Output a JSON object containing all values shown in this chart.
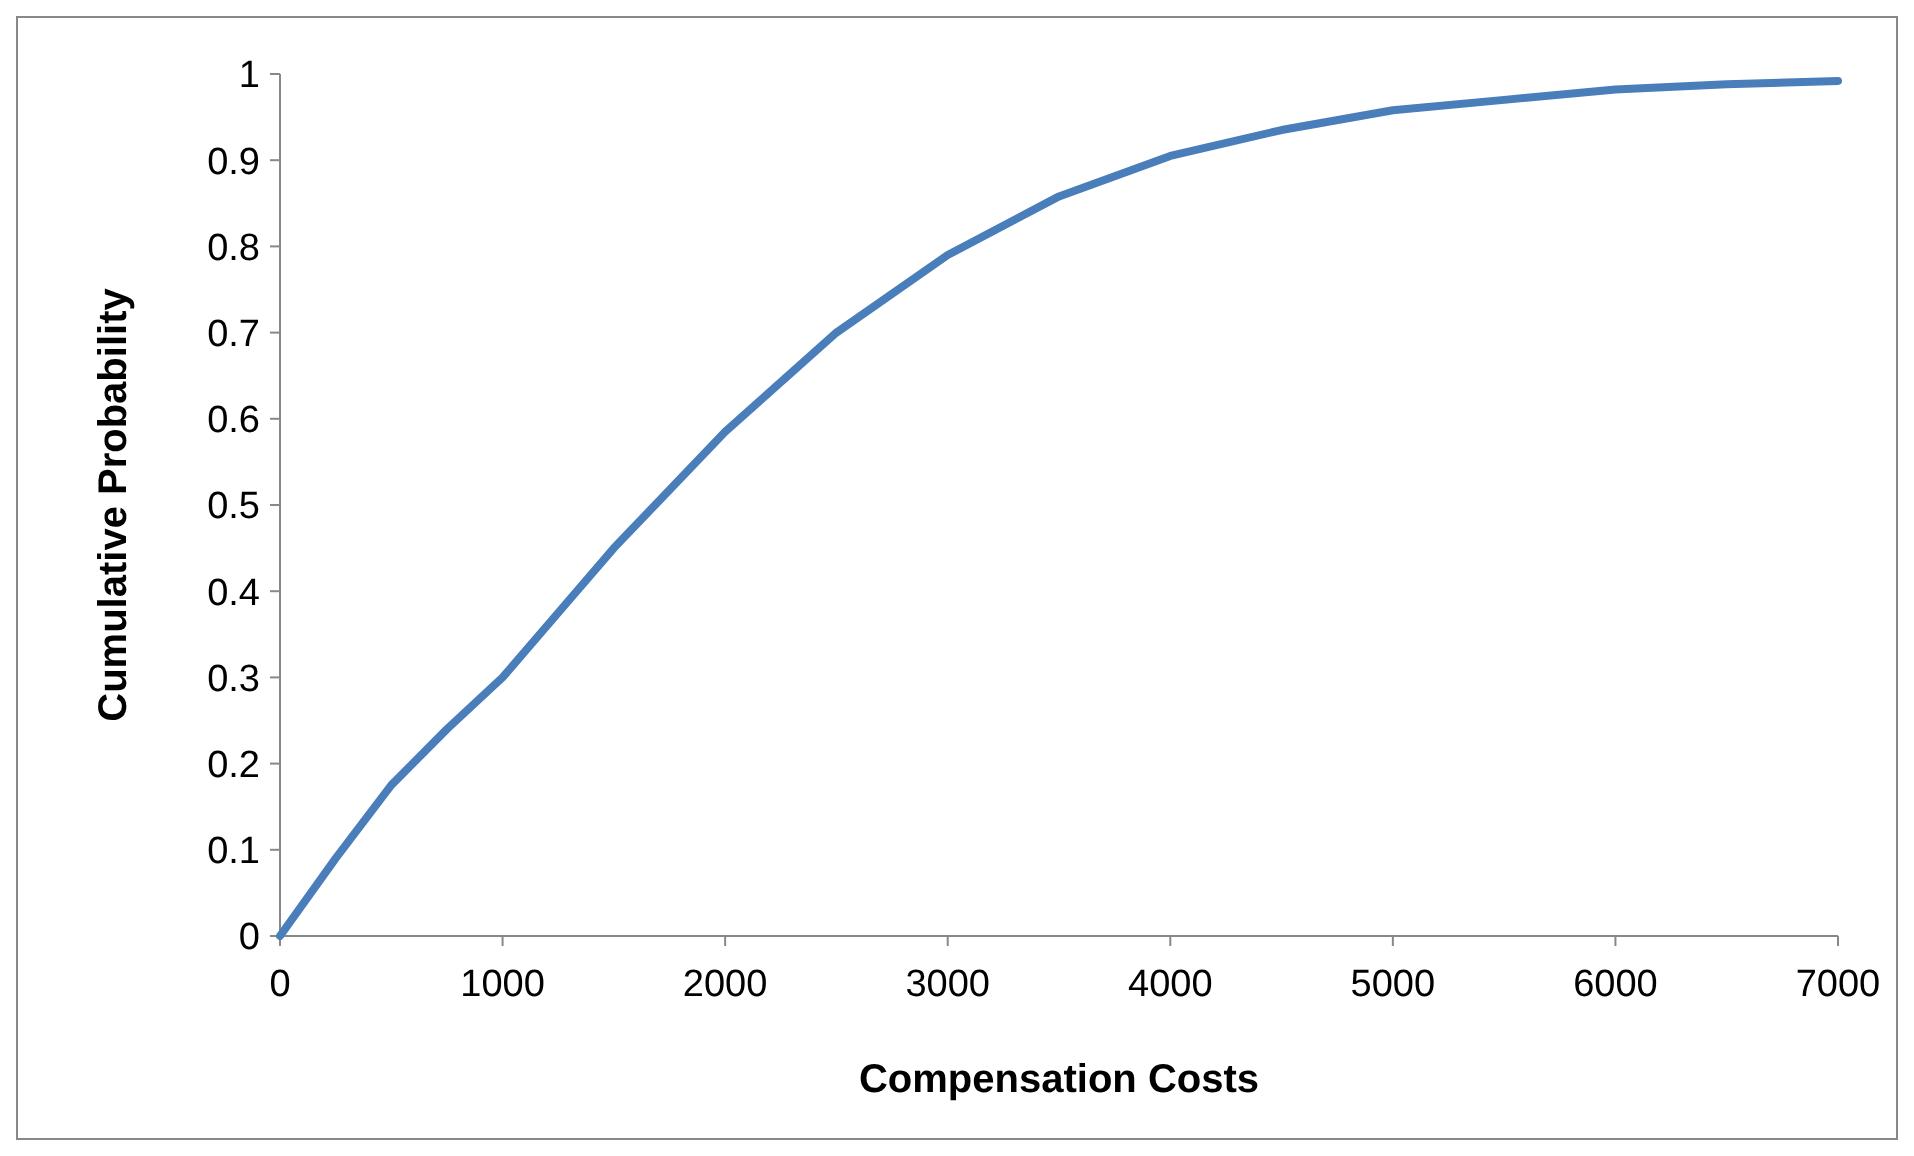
{
  "chart_data": {
    "type": "line",
    "xlabel": "Compensation Costs",
    "ylabel": "Cumulative Probability",
    "x": [
      0,
      250,
      500,
      750,
      1000,
      1250,
      1500,
      2000,
      2500,
      3000,
      3500,
      4000,
      4500,
      5000,
      5500,
      6000,
      6500,
      7000
    ],
    "series": [
      {
        "color": "#4a7ebb",
        "values": [
          0,
          0.09,
          0.175,
          0.24,
          0.3,
          0.375,
          0.45,
          0.585,
          0.7,
          0.79,
          0.858,
          0.905,
          0.935,
          0.958,
          0.97,
          0.982,
          0.988,
          0.992
        ]
      }
    ],
    "xlim": [
      0,
      7000
    ],
    "xticks": [
      0,
      1000,
      2000,
      3000,
      4000,
      5000,
      6000,
      7000
    ],
    "ylim": [
      0,
      1
    ],
    "yticks": [
      0,
      0.1,
      0.2,
      0.3,
      0.4,
      0.5,
      0.6,
      0.7,
      0.8,
      0.9,
      1
    ],
    "grid": false,
    "marker": "none",
    "line_style": "solid"
  }
}
